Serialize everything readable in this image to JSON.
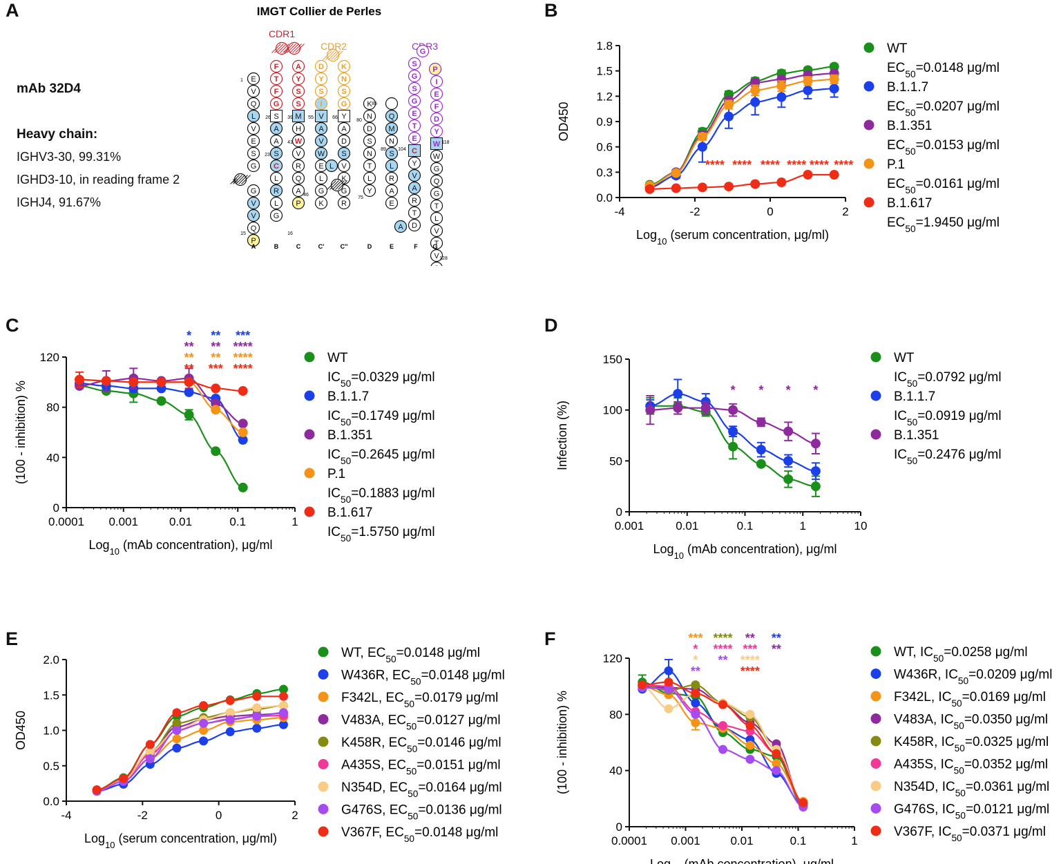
{
  "panel_labels": {
    "a": "A",
    "b": "B",
    "c": "C",
    "d": "D",
    "e": "E",
    "f": "F"
  },
  "panel_a": {
    "title": "IMGT Collier de Perles",
    "mab": "mAb 32D4",
    "heavy_chain_label": "Heavy chain:",
    "genes": [
      "IGHV3-30, 99.31%",
      "IGHD3-10, in reading frame 2",
      "IGHJ4, 91.67%"
    ],
    "cdr_labels": [
      "CDR1",
      "CDR2",
      "CDR3"
    ],
    "colors": {
      "cdr1": "#d21f26",
      "cdr2": "#f0a020",
      "cdr3": "#9b2bd4",
      "hydrophobic": "#a9d6f0",
      "proline": "#fff49a"
    },
    "strands": [
      "A",
      "B",
      "C",
      "C'",
      "C''",
      "D",
      "E",
      "F",
      "G"
    ],
    "numbers": [
      "1",
      "10",
      "15",
      "16",
      "23",
      "26",
      "39",
      "41",
      "46",
      "55",
      "66",
      "75",
      "80",
      "85",
      "89",
      "104",
      "118",
      "128"
    ],
    "cdr1_seq": [
      "F",
      "T",
      "F",
      "G",
      "S",
      "S",
      "Y",
      "A"
    ],
    "cdr2_seq": [
      "D",
      "Y",
      "S",
      "I",
      "G",
      "S",
      "N",
      "K"
    ],
    "cdr3_seq": [
      "S",
      "G",
      "S",
      "G",
      "E",
      "T",
      "E",
      "G",
      "P",
      "I",
      "E",
      "F",
      "D",
      "Y",
      "W"
    ],
    "fr_a": [
      "E",
      "V",
      "Q",
      "L",
      "V",
      "E",
      "S",
      "G",
      "G",
      "V",
      "V",
      "Q",
      "P"
    ],
    "fr_b": [
      "S",
      "A",
      "A",
      "S",
      "C",
      "L",
      "R",
      "L",
      "G"
    ],
    "fr_c": [
      "M",
      "H",
      "W",
      "V",
      "R",
      "Q",
      "A",
      "P"
    ],
    "fr_cp": [
      "V",
      "A",
      "V",
      "W",
      "E",
      "L",
      "G",
      "K"
    ],
    "fr_cpp": [
      "Y",
      "A",
      "D",
      "S",
      "V",
      "K",
      "G",
      "R"
    ],
    "fr_d": [
      "K",
      "N",
      "D",
      "S",
      "N",
      "T",
      "L",
      "Y"
    ],
    "fr_e": [
      "Q",
      "M",
      "N",
      "S",
      "L",
      "R",
      "A",
      "E"
    ],
    "fr_f": [
      "C",
      "Y",
      "V",
      "A",
      "R",
      "T",
      "D"
    ],
    "fr_g": [
      "W",
      "G",
      "Q",
      "G",
      "T",
      "L",
      "V",
      "T",
      "V",
      "S",
      "S"
    ]
  },
  "chart_data": [
    {
      "id": "B",
      "type": "line",
      "title": "",
      "xlabel": "Log10 (serum concentration, μg/ml)",
      "ylabel": "OD450",
      "xlim": [
        -4,
        2
      ],
      "ylim": [
        0,
        1.8
      ],
      "xticks": [
        "-4",
        "-2",
        "0",
        "2"
      ],
      "yticks": [
        "0.0",
        "0.3",
        "0.6",
        "0.9",
        "1.2",
        "1.5",
        "1.8"
      ],
      "x": [
        -3.2,
        -2.5,
        -1.8,
        -1.1,
        -0.4,
        0.3,
        1.0,
        1.7
      ],
      "series": [
        {
          "name": "WT",
          "stat": "EC50=0.0148 μg/ml",
          "color": "#1a8f1a",
          "values": [
            0.15,
            0.3,
            0.78,
            1.22,
            1.38,
            1.47,
            1.51,
            1.55
          ]
        },
        {
          "name": "B.1.1.7",
          "stat": "EC50=0.0207 μg/ml",
          "color": "#1b3fe8",
          "values": [
            0.12,
            0.26,
            0.6,
            0.96,
            1.13,
            1.19,
            1.27,
            1.29
          ]
        },
        {
          "name": "B.1.351",
          "stat": "EC50=0.0153 μg/ml",
          "color": "#8e2a9e",
          "values": [
            0.13,
            0.3,
            0.74,
            1.15,
            1.36,
            1.4,
            1.45,
            1.47
          ]
        },
        {
          "name": "P.1",
          "stat": "EC50=0.0161 μg/ml",
          "color": "#f59318",
          "values": [
            0.14,
            0.29,
            0.72,
            1.1,
            1.27,
            1.32,
            1.38,
            1.4
          ]
        },
        {
          "name": "B.1.617",
          "stat": "EC50=1.9450 μg/ml",
          "color": "#ef2d16",
          "values": [
            0.1,
            0.11,
            0.12,
            0.13,
            0.16,
            0.18,
            0.27,
            0.27
          ]
        }
      ],
      "annotations": [
        {
          "text": "****",
          "x": -1.47,
          "color": "#ef2d16"
        },
        {
          "text": "****",
          "x": -0.75,
          "color": "#ef2d16"
        },
        {
          "text": "****",
          "x": 0,
          "color": "#ef2d16"
        },
        {
          "text": "****",
          "x": 0.7,
          "color": "#ef2d16"
        },
        {
          "text": "****",
          "x": 1.3,
          "color": "#ef2d16"
        },
        {
          "text": "****",
          "x": 1.95,
          "color": "#ef2d16"
        }
      ]
    },
    {
      "id": "C",
      "type": "line",
      "title": "",
      "xlabel": "Log10 (mAb concentration), μg/ml",
      "ylabel": "(100 - inhibition) %",
      "xlim": [
        0.0001,
        1
      ],
      "ylim": [
        0,
        120
      ],
      "xticks": [
        "0.0001",
        "0.001",
        "0.01",
        "0.1",
        "1"
      ],
      "yticks": [
        "0",
        "40",
        "80",
        "120"
      ],
      "x": [
        0.00017,
        0.0005,
        0.0015,
        0.0046,
        0.014,
        0.041,
        0.123
      ],
      "series": [
        {
          "name": "WT",
          "stat": "IC50=0.0329 μg/ml",
          "color": "#1a8f1a",
          "values": [
            97,
            93,
            91,
            85,
            74,
            45,
            16
          ]
        },
        {
          "name": "B.1.1.7",
          "stat": "IC50=0.1749 μg/ml",
          "color": "#1b3fe8",
          "values": [
            99,
            97,
            95,
            95,
            92,
            87,
            54
          ]
        },
        {
          "name": "B.1.351",
          "stat": "IC50=0.2645 μg/ml",
          "color": "#8e2a9e",
          "values": [
            97,
            101,
            103,
            101,
            103,
            83,
            67
          ]
        },
        {
          "name": "P.1",
          "stat": "IC50=0.1883 μg/ml",
          "color": "#f59318",
          "values": [
            102,
            101,
            100,
            100,
            100,
            78,
            60
          ]
        },
        {
          "name": "B.1.617",
          "stat": "IC50=1.5750 μg/ml",
          "color": "#ef2d16",
          "values": [
            102,
            101,
            100,
            100,
            100,
            95,
            93
          ]
        }
      ],
      "annotations": [
        {
          "x": 0.014,
          "lines": [
            {
              "t": "*",
              "c": "#1b3fe8"
            },
            {
              "t": "**",
              "c": "#8e2a9e"
            },
            {
              "t": "**",
              "c": "#f59318"
            },
            {
              "t": "**",
              "c": "#ef2d16"
            }
          ]
        },
        {
          "x": 0.041,
          "lines": [
            {
              "t": "**",
              "c": "#1b3fe8"
            },
            {
              "t": "**",
              "c": "#8e2a9e"
            },
            {
              "t": "**",
              "c": "#f59318"
            },
            {
              "t": "***",
              "c": "#ef2d16"
            }
          ]
        },
        {
          "x": 0.123,
          "lines": [
            {
              "t": "***",
              "c": "#1b3fe8"
            },
            {
              "t": "****",
              "c": "#8e2a9e"
            },
            {
              "t": "****",
              "c": "#f59318"
            },
            {
              "t": "****",
              "c": "#ef2d16"
            }
          ]
        }
      ]
    },
    {
      "id": "D",
      "type": "line",
      "title": "",
      "xlabel": "Log10 (mAb concentration), μg/ml",
      "ylabel": "Infection (%)",
      "xlim": [
        0.001,
        10
      ],
      "ylim": [
        0,
        150
      ],
      "xticks": [
        "0.001",
        "0.01",
        "0.1",
        "1",
        "10"
      ],
      "yticks": [
        "0",
        "50",
        "100",
        "150"
      ],
      "x": [
        0.0023,
        0.0069,
        0.021,
        0.062,
        0.19,
        0.56,
        1.67
      ],
      "series": [
        {
          "name": "WT",
          "stat": "IC50=0.0792 μg/ml",
          "color": "#1a8f1a",
          "values": [
            104,
            104,
            98,
            64,
            47,
            32,
            25
          ]
        },
        {
          "name": "B.1.1.7",
          "stat": "IC50=0.0919 μg/ml",
          "color": "#1b3fe8",
          "values": [
            104,
            116,
            108,
            79,
            61,
            50,
            40
          ]
        },
        {
          "name": "B.1.351",
          "stat": "IC50=0.2476 μg/ml",
          "color": "#8e2a9e",
          "values": [
            100,
            102,
            102,
            100,
            88,
            79,
            67
          ]
        }
      ],
      "annotations": [
        {
          "text": "*",
          "x": 0.062,
          "color": "#8e2a9e"
        },
        {
          "text": "*",
          "x": 0.19,
          "color": "#8e2a9e"
        },
        {
          "text": "*",
          "x": 0.56,
          "color": "#8e2a9e"
        },
        {
          "text": "*",
          "x": 1.67,
          "color": "#8e2a9e"
        }
      ]
    },
    {
      "id": "E",
      "type": "line",
      "title": "",
      "xlabel": "Log10 (serum concentration, μg/ml)",
      "ylabel": "OD450",
      "xlim": [
        -4,
        2
      ],
      "ylim": [
        0,
        2.0
      ],
      "xticks": [
        "-4",
        "-2",
        "0",
        "2"
      ],
      "yticks": [
        "0.0",
        "0.5",
        "1.0",
        "1.5",
        "2.0"
      ],
      "x": [
        -3.2,
        -2.5,
        -1.8,
        -1.1,
        -0.4,
        0.3,
        1.0,
        1.7
      ],
      "series": [
        {
          "name": "WT",
          "stat": "EC50=0.0148 μg/ml",
          "color": "#1a8f1a",
          "values": [
            0.16,
            0.33,
            0.8,
            1.2,
            1.32,
            1.43,
            1.52,
            1.58
          ]
        },
        {
          "name": "W436R",
          "stat": "EC50=0.0148 μg/ml",
          "color": "#1b3fe8",
          "values": [
            0.14,
            0.24,
            0.52,
            0.75,
            0.85,
            0.98,
            1.03,
            1.08
          ]
        },
        {
          "name": "F342L",
          "stat": "EC50=0.0179 μg/ml",
          "color": "#f59318",
          "values": [
            0.15,
            0.28,
            0.6,
            0.88,
            1.0,
            1.12,
            1.15,
            1.18
          ]
        },
        {
          "name": "V483A",
          "stat": "EC50=0.0127 μg/ml",
          "color": "#8e2a9e",
          "values": [
            0.15,
            0.3,
            0.7,
            1.05,
            1.15,
            1.2,
            1.22,
            1.24
          ]
        },
        {
          "name": "K458R",
          "stat": "EC50=0.0146 μg/ml",
          "color": "#858b10",
          "values": [
            0.15,
            0.3,
            0.68,
            1.1,
            1.18,
            1.25,
            1.3,
            1.35
          ]
        },
        {
          "name": "A435S",
          "stat": "EC50=0.0151 μg/ml",
          "color": "#f0379a",
          "values": [
            0.15,
            0.3,
            0.66,
            1.0,
            1.1,
            1.16,
            1.2,
            1.21
          ]
        },
        {
          "name": "N354D",
          "stat": "EC50=0.0164 μg/ml",
          "color": "#f8cc84",
          "values": [
            0.15,
            0.3,
            0.7,
            1.0,
            1.15,
            1.25,
            1.32,
            1.35
          ]
        },
        {
          "name": "G476S",
          "stat": "EC50=0.0136 μg/ml",
          "color": "#a54bf0",
          "values": [
            0.14,
            0.28,
            0.6,
            1.0,
            1.1,
            1.15,
            1.2,
            1.25
          ]
        },
        {
          "name": "V367F",
          "stat": "EC50=0.0148 μg/ml",
          "color": "#ef2d16",
          "values": [
            0.16,
            0.32,
            0.8,
            1.25,
            1.35,
            1.42,
            1.48,
            1.48
          ]
        }
      ]
    },
    {
      "id": "F",
      "type": "line",
      "title": "",
      "xlabel": "Log10 (mAb concentration), μg/ml",
      "ylabel": "(100 - inhibition) %",
      "xlim": [
        0.0001,
        1
      ],
      "ylim": [
        0,
        120
      ],
      "xticks": [
        "0.0001",
        "0.001",
        "0.01",
        "0.1",
        "1"
      ],
      "yticks": [
        "0",
        "40",
        "80",
        "120"
      ],
      "x": [
        0.00017,
        0.0005,
        0.0015,
        0.0046,
        0.014,
        0.041,
        0.123
      ],
      "series": [
        {
          "name": "WT",
          "stat": "IC50=0.0258 μg/ml",
          "color": "#1a8f1a",
          "values": [
            103,
            95,
            93,
            67,
            55,
            50,
            15
          ]
        },
        {
          "name": "W436R",
          "stat": "IC50=0.0209 μg/ml",
          "color": "#1b3fe8",
          "values": [
            98,
            111,
            88,
            70,
            62,
            38,
            15
          ]
        },
        {
          "name": "F342L",
          "stat": "IC50=0.0169 μg/ml",
          "color": "#f59318",
          "values": [
            100,
            94,
            74,
            70,
            58,
            45,
            18
          ]
        },
        {
          "name": "V483A",
          "stat": "IC50=0.0350 μg/ml",
          "color": "#8e2a9e",
          "values": [
            100,
            99,
            98,
            87,
            74,
            59,
            15
          ]
        },
        {
          "name": "K458R",
          "stat": "IC50=0.0325 μg/ml",
          "color": "#858b10",
          "values": [
            101,
            97,
            101,
            88,
            78,
            55,
            16
          ]
        },
        {
          "name": "A435S",
          "stat": "IC50=0.0352 μg/ml",
          "color": "#f0379a",
          "values": [
            101,
            100,
            82,
            72,
            68,
            52,
            16
          ]
        },
        {
          "name": "N354D",
          "stat": "IC50=0.0361 μg/ml",
          "color": "#f8cc84",
          "values": [
            100,
            84,
            95,
            88,
            80,
            55,
            17
          ]
        },
        {
          "name": "G476S",
          "stat": "IC50=0.0121 μg/ml",
          "color": "#a54bf0",
          "values": [
            99,
            98,
            80,
            55,
            48,
            40,
            14
          ]
        },
        {
          "name": "V367F",
          "stat": "IC50=0.0371 μg/ml",
          "color": "#ef2d16",
          "values": [
            101,
            103,
            95,
            87,
            72,
            52,
            17
          ]
        }
      ],
      "annotations": [
        {
          "x": 0.0015,
          "lines": [
            {
              "t": "***",
              "c": "#f59318"
            },
            {
              "t": "*",
              "c": "#f0379a"
            },
            {
              "t": "*",
              "c": "#f8cc84"
            },
            {
              "t": "**",
              "c": "#a54bf0"
            }
          ]
        },
        {
          "x": 0.0046,
          "lines": [
            {
              "t": "****",
              "c": "#858b10"
            },
            {
              "t": "****",
              "c": "#f0379a"
            },
            {
              "t": "**",
              "c": "#a54bf0"
            }
          ]
        },
        {
          "x": 0.014,
          "lines": [
            {
              "t": "**",
              "c": "#8e2a9e"
            },
            {
              "t": "***",
              "c": "#f0379a"
            },
            {
              "t": "****",
              "c": "#f8cc84"
            },
            {
              "t": "****",
              "c": "#ef2d16"
            }
          ]
        },
        {
          "x": 0.041,
          "lines": [
            {
              "t": "**",
              "c": "#1b3fe8"
            },
            {
              "t": "**",
              "c": "#8e2a9e"
            }
          ]
        }
      ]
    }
  ]
}
